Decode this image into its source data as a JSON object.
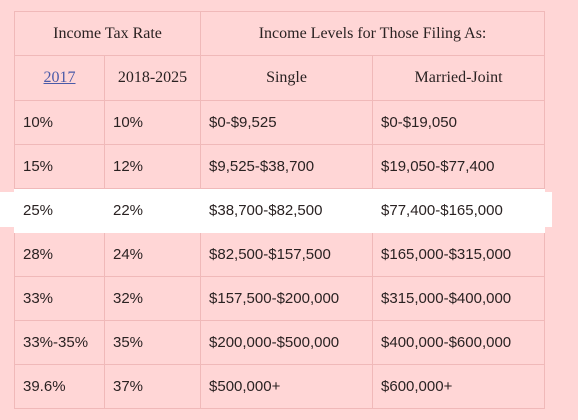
{
  "header": {
    "rate_title": "Income Tax Rate",
    "levels_title": "Income Levels for Those Filing As:",
    "year_old": "2017",
    "year_new": "2018-2025",
    "single": "Single",
    "married": "Married-Joint"
  },
  "rows": [
    {
      "rate2017": "10%",
      "rate2018": "10%",
      "single": "$0-$9,525",
      "married": "$0-$19,050"
    },
    {
      "rate2017": "15%",
      "rate2018": "12%",
      "single": "$9,525-$38,700",
      "married": "$19,050-$77,400"
    },
    {
      "rate2017": "25%",
      "rate2018": "22%",
      "single": "$38,700-$82,500",
      "married": "$77,400-$165,000"
    },
    {
      "rate2017": "28%",
      "rate2018": "24%",
      "single": "$82,500-$157,500",
      "married": "$165,000-$315,000"
    },
    {
      "rate2017": "33%",
      "rate2018": "32%",
      "single": "$157,500-$200,000",
      "married": "$315,000-$400,000"
    },
    {
      "rate2017": "33%-35%",
      "rate2018": "35%",
      "single": "$200,000-$500,000",
      "married": "$400,000-$600,000"
    },
    {
      "rate2017": "39.6%",
      "rate2018": "37%",
      "single": "$500,000+",
      "married": "$600,000+"
    }
  ],
  "colors": {
    "background": "#ffd6d6",
    "border": "#f0b9b9",
    "highlight": "#ffffff",
    "link": "#4a5aa8"
  }
}
